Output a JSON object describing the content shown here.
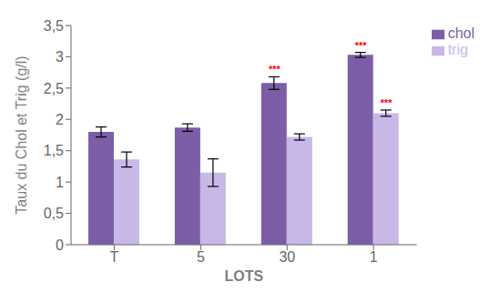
{
  "chart_data": {
    "type": "bar",
    "categories": [
      "T",
      "5",
      "30",
      "1"
    ],
    "series": [
      {
        "name": "chol",
        "color": "#7B5EA7",
        "values": [
          1.8,
          1.87,
          2.58,
          3.03
        ],
        "errors": [
          0.08,
          0.06,
          0.1,
          0.04
        ]
      },
      {
        "name": "trig",
        "color": "#C8B8E8",
        "values": [
          1.36,
          1.15,
          1.72,
          2.1
        ],
        "errors": [
          0.12,
          0.22,
          0.05,
          0.05
        ]
      }
    ],
    "annotations": [
      {
        "series": "chol",
        "category": "30",
        "text": "***",
        "color": "#FF0000"
      },
      {
        "series": "chol",
        "category": "1",
        "text": "***",
        "color": "#FF0000"
      },
      {
        "series": "trig",
        "category": "1",
        "text": "***",
        "color": "#FF0000"
      }
    ],
    "xlabel": "LOTS",
    "ylabel": "Taux du Chol et Trig (g/l)",
    "ylim": [
      0,
      3.5
    ],
    "yticks": [
      0,
      {
        "value": 0.5,
        "label": "0,5"
      },
      1,
      {
        "value": 1.5,
        "label": "1,5"
      },
      2,
      {
        "value": 2.5,
        "label": "2,5"
      },
      3,
      {
        "value": 3.5,
        "label": "3,5"
      }
    ],
    "grid": false,
    "legend": "right"
  }
}
